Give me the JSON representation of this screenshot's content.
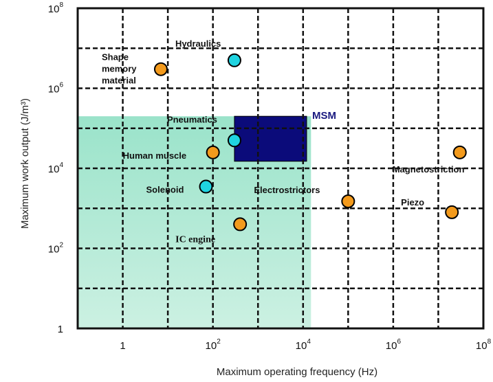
{
  "chart_data": {
    "type": "scatter",
    "xlabel": "Maximum operating frequency (Hz)",
    "ylabel": "Maximum work output (J/m³)",
    "x_scale": "log",
    "y_scale": "log",
    "xlim": [
      0.1,
      100000000
    ],
    "ylim": [
      1,
      100000000
    ],
    "x_ticks": [
      {
        "value": 1,
        "base": "1",
        "exp": ""
      },
      {
        "value": 100,
        "base": "10",
        "exp": "2"
      },
      {
        "value": 10000,
        "base": "10",
        "exp": "4"
      },
      {
        "value": 1000000,
        "base": "10",
        "exp": "6"
      },
      {
        "value": 100000000,
        "base": "10",
        "exp": "8"
      }
    ],
    "y_ticks": [
      {
        "value": 1,
        "base": "1",
        "exp": ""
      },
      {
        "value": 100,
        "base": "10",
        "exp": "2"
      },
      {
        "value": 10000,
        "base": "10",
        "exp": "4"
      },
      {
        "value": 1000000,
        "base": "10",
        "exp": "6"
      },
      {
        "value": 100000000,
        "base": "10",
        "exp": "8"
      }
    ],
    "grid": true,
    "shaded_region": {
      "x": [
        0.1,
        15000
      ],
      "y": [
        1,
        200000
      ],
      "color": "#c6efdf"
    },
    "msm_region": {
      "label": "MSM",
      "x": [
        300,
        12000
      ],
      "y": [
        15000,
        200000
      ],
      "color": "#0b0b7a"
    },
    "points": [
      {
        "label": "Hydraulics",
        "x": 300,
        "y": 5000000,
        "color": "#1fd3e0"
      },
      {
        "label": "Shape memory material",
        "lines": [
          "Shape",
          "memory",
          "material"
        ],
        "x": 7,
        "y": 3000000,
        "color": "#f39a1c"
      },
      {
        "label": "Pneumatics",
        "x": 300,
        "y": 50000,
        "color": "#1fd3e0"
      },
      {
        "label": "Human muscle",
        "x": 100,
        "y": 25000,
        "color": "#f39a1c"
      },
      {
        "label": "Solenoid",
        "x": 70,
        "y": 3500,
        "color": "#1fd3e0"
      },
      {
        "label": "IC engine",
        "x": 400,
        "y": 400,
        "color": "#f39a1c"
      },
      {
        "label": "Electrostrictors",
        "x": 100000,
        "y": 1500,
        "color": "#f39a1c"
      },
      {
        "label": "Magnetostriction",
        "x": 30000000,
        "y": 25000,
        "color": "#f39a1c"
      },
      {
        "label": "Piezo",
        "x": 20000000,
        "y": 800,
        "color": "#f39a1c"
      }
    ]
  }
}
